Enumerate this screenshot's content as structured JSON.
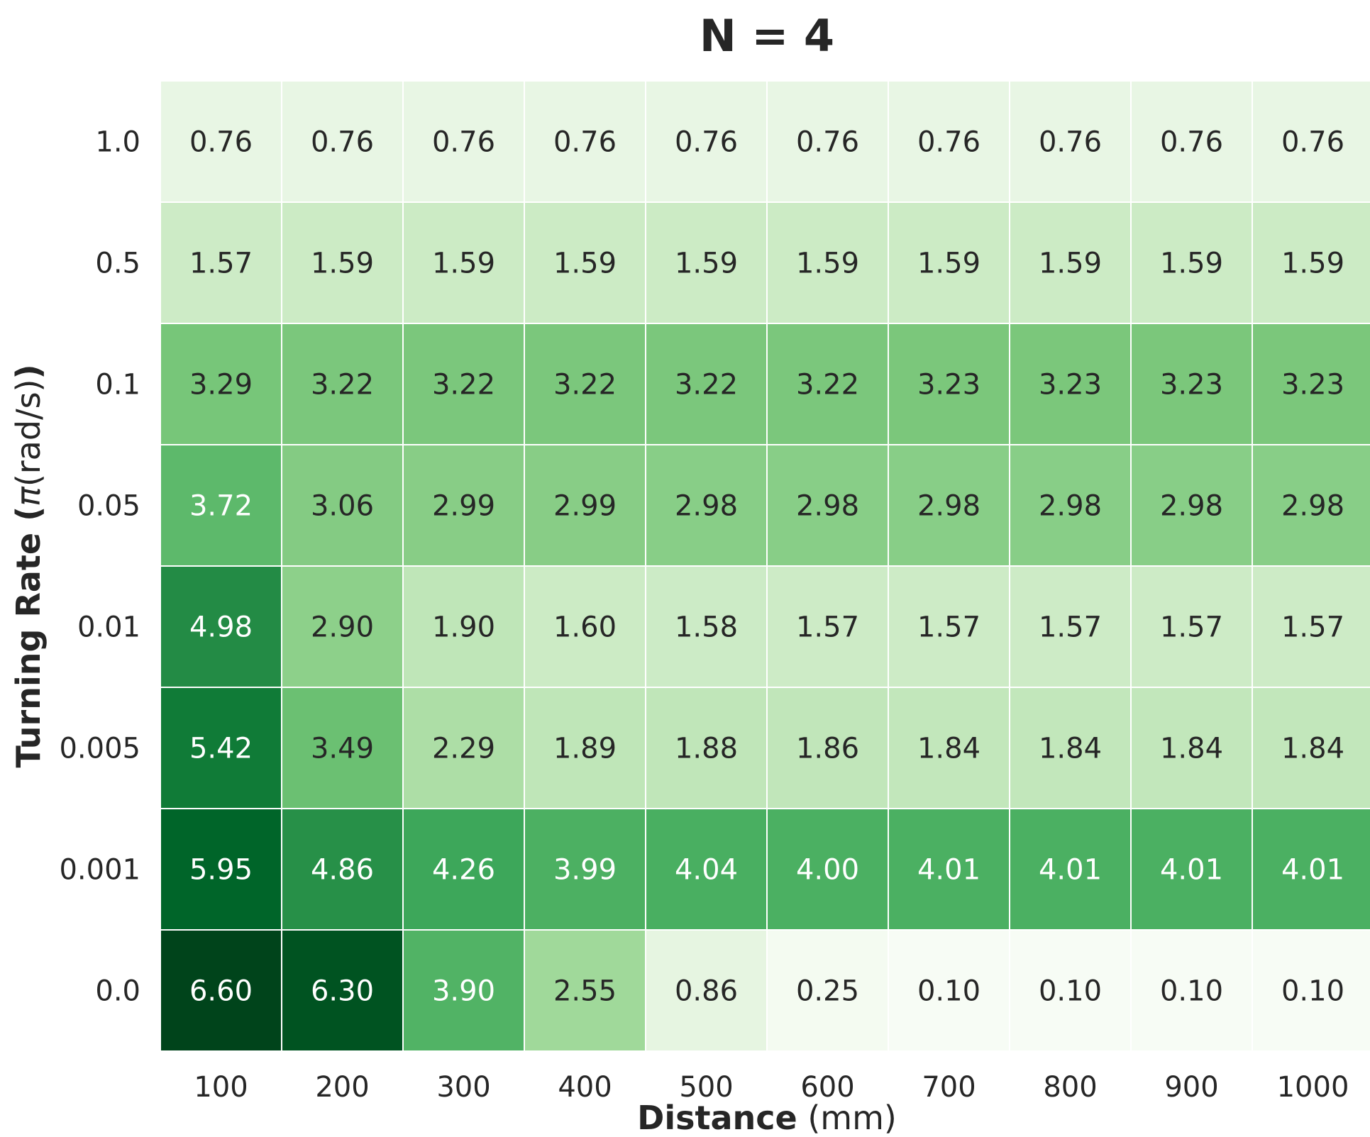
{
  "chart_data": {
    "type": "heatmap",
    "title": "N = 4",
    "xlabel": {
      "bold": "Distance",
      "rest": " (mm)"
    },
    "ylabel": {
      "bold_prefix": "Turning Rate (",
      "symbol": "π",
      "middle": "(rad/s)",
      "bold_suffix": ")"
    },
    "x_categories": [
      "100",
      "200",
      "300",
      "400",
      "500",
      "600",
      "700",
      "800",
      "900",
      "1000"
    ],
    "y_categories": [
      "1.0",
      "0.5",
      "0.1",
      "0.05",
      "0.01",
      "0.005",
      "0.001",
      "0.0"
    ],
    "values": [
      [
        0.76,
        0.76,
        0.76,
        0.76,
        0.76,
        0.76,
        0.76,
        0.76,
        0.76,
        0.76
      ],
      [
        1.57,
        1.59,
        1.59,
        1.59,
        1.59,
        1.59,
        1.59,
        1.59,
        1.59,
        1.59
      ],
      [
        3.29,
        3.22,
        3.22,
        3.22,
        3.22,
        3.22,
        3.23,
        3.23,
        3.23,
        3.23
      ],
      [
        3.72,
        3.06,
        2.99,
        2.99,
        2.98,
        2.98,
        2.98,
        2.98,
        2.98,
        2.98
      ],
      [
        4.98,
        2.9,
        1.9,
        1.6,
        1.58,
        1.57,
        1.57,
        1.57,
        1.57,
        1.57
      ],
      [
        5.42,
        3.49,
        2.29,
        1.89,
        1.88,
        1.86,
        1.84,
        1.84,
        1.84,
        1.84
      ],
      [
        5.95,
        4.86,
        4.26,
        3.99,
        4.04,
        4.0,
        4.01,
        4.01,
        4.01,
        4.01
      ],
      [
        6.6,
        6.3,
        3.9,
        2.55,
        0.86,
        0.25,
        0.1,
        0.1,
        0.1,
        0.1
      ]
    ],
    "value_format": "2 decimals",
    "colormap": "Greens",
    "color_stops": [
      "#f7fcf5",
      "#e5f5e0",
      "#c7e9c0",
      "#a1d99b",
      "#74c476",
      "#41ab5d",
      "#238b45",
      "#006d2c",
      "#00441b"
    ],
    "vmin": 0.1,
    "vmax": 6.6,
    "colorbar": false,
    "grid_line_color": "#ffffff",
    "dark_text_color": "#262626",
    "light_text_color": "#ffffff"
  }
}
